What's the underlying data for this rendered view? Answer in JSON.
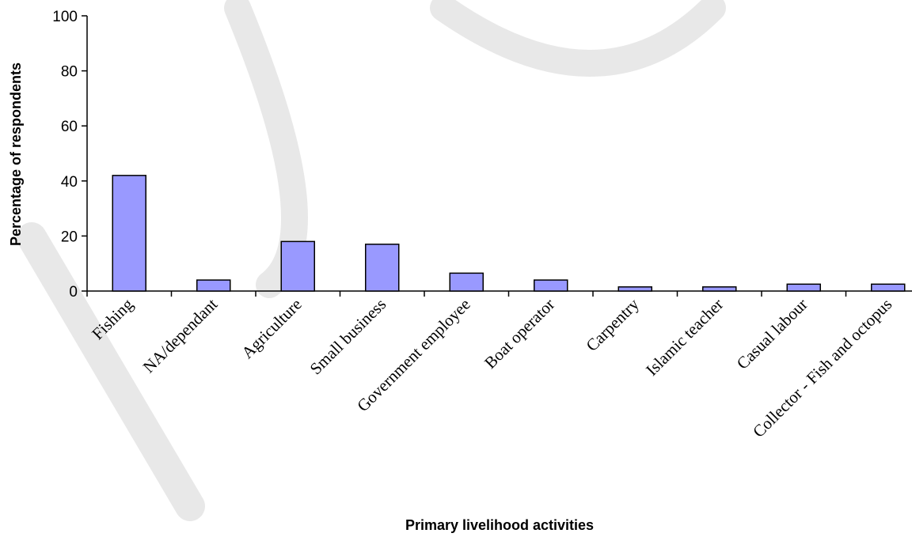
{
  "chart_data": {
    "type": "bar",
    "categories": [
      "Fishing",
      "NA/dependant",
      "Agriculture",
      "Small business",
      "Government employee",
      "Boat operator",
      "Carpentry",
      "Islamic teacher",
      "Casual labour",
      "Collector - Fish and octopus"
    ],
    "values": [
      42,
      4,
      18,
      17,
      6.5,
      4,
      1.5,
      1.5,
      2.5,
      2.5
    ],
    "xlabel": "Primary livelihood activities",
    "ylabel": "Percentage of respondents",
    "ylim": [
      0,
      100
    ],
    "yticks": [
      0,
      20,
      40,
      60,
      80,
      100
    ],
    "grid": false,
    "legend": "none",
    "bar_color": "#9999FF",
    "bar_stroke": "#000000"
  }
}
